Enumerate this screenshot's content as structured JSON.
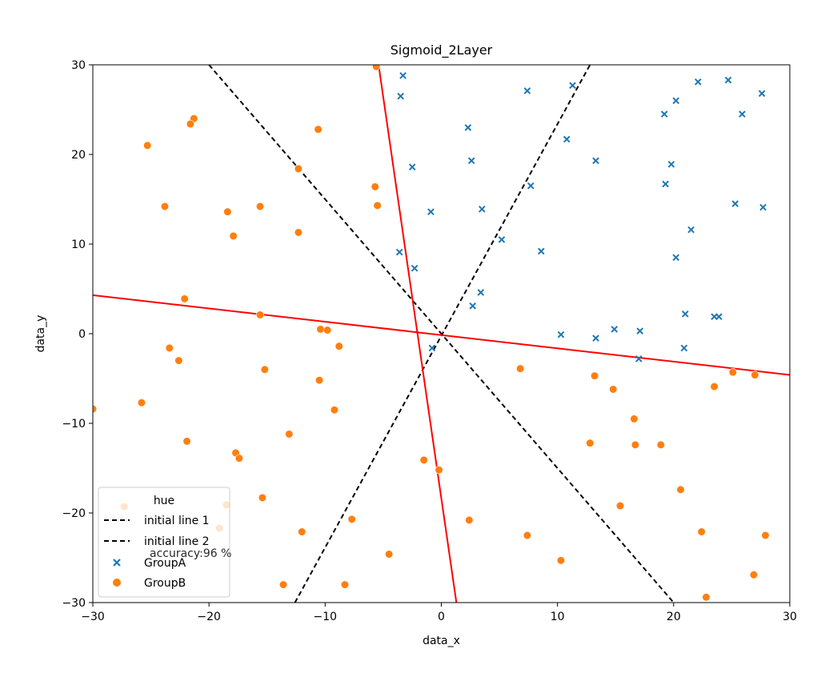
{
  "chart_data": {
    "type": "scatter",
    "title": "Sigmoid_2Layer",
    "xlabel": "data_x",
    "ylabel": "data_y",
    "xlim": [
      -30,
      30
    ],
    "ylim": [
      -30,
      30
    ],
    "x_ticks": [
      -30,
      -20,
      -10,
      0,
      10,
      20,
      30
    ],
    "y_ticks": [
      -30,
      -20,
      -10,
      0,
      10,
      20,
      30
    ],
    "x_tick_labels": [
      "−30",
      "−20",
      "−10",
      "0",
      "10",
      "20",
      "30"
    ],
    "y_tick_labels": [
      "−30",
      "−20",
      "−10",
      "0",
      "10",
      "20",
      "30"
    ],
    "grid": false,
    "legend": {
      "title": "hue",
      "placement": "lower-left",
      "entries": [
        {
          "label": "initial line 1",
          "kind": "dashed-line",
          "color": "#000000"
        },
        {
          "label": "initial line 2",
          "kind": "dashed-line",
          "color": "#000000"
        },
        {
          "label": "GroupA",
          "kind": "x-marker",
          "color": "#1f77b4"
        },
        {
          "label": "GroupB",
          "kind": "circle-marker",
          "color": "#ff7f0e"
        }
      ]
    },
    "annotation": "accuracy:96 %",
    "lines": [
      {
        "label": "initial line 1",
        "style": "dashed",
        "color": "#000000",
        "points": [
          [
            -20,
            30
          ],
          [
            20,
            -30
          ]
        ]
      },
      {
        "label": "initial line 2",
        "style": "dashed",
        "color": "#000000",
        "points": [
          [
            -12.6,
            -30
          ],
          [
            12.8,
            30
          ]
        ]
      },
      {
        "label": "",
        "style": "solid",
        "color": "#ff0000",
        "points": [
          [
            -30,
            4.3
          ],
          [
            30,
            -4.6
          ]
        ]
      },
      {
        "label": "",
        "style": "solid",
        "color": "#ff0000",
        "points": [
          [
            -5.4,
            30
          ],
          [
            1.3,
            -30
          ]
        ]
      }
    ],
    "series": [
      {
        "name": "GroupA",
        "marker": "x",
        "color": "#1f77b4",
        "points": [
          [
            -3.3,
            28.8
          ],
          [
            -3.5,
            26.5
          ],
          [
            7.4,
            27.1
          ],
          [
            11.3,
            27.7
          ],
          [
            22.1,
            28.1
          ],
          [
            24.7,
            28.3
          ],
          [
            27.6,
            26.8
          ],
          [
            20.2,
            26.0
          ],
          [
            19.2,
            24.5
          ],
          [
            25.9,
            24.5
          ],
          [
            2.3,
            23.0
          ],
          [
            10.8,
            21.7
          ],
          [
            -2.5,
            18.6
          ],
          [
            2.6,
            19.3
          ],
          [
            13.3,
            19.3
          ],
          [
            19.8,
            18.9
          ],
          [
            19.3,
            16.7
          ],
          [
            7.7,
            16.5
          ],
          [
            -0.9,
            13.6
          ],
          [
            3.5,
            13.9
          ],
          [
            25.3,
            14.5
          ],
          [
            27.7,
            14.1
          ],
          [
            21.5,
            11.6
          ],
          [
            5.2,
            10.5
          ],
          [
            8.6,
            9.2
          ],
          [
            -3.6,
            9.1
          ],
          [
            -2.3,
            7.3
          ],
          [
            20.2,
            8.5
          ],
          [
            3.4,
            4.6
          ],
          [
            2.7,
            3.1
          ],
          [
            21.0,
            2.2
          ],
          [
            23.5,
            1.9
          ],
          [
            23.9,
            1.9
          ],
          [
            14.9,
            0.5
          ],
          [
            10.3,
            -0.1
          ],
          [
            17.1,
            0.3
          ],
          [
            13.3,
            -0.5
          ],
          [
            -0.8,
            -1.6
          ],
          [
            20.9,
            -1.6
          ],
          [
            17.0,
            -2.8
          ]
        ]
      },
      {
        "name": "GroupB",
        "marker": "o",
        "color": "#ff7f0e",
        "points": [
          [
            -5.6,
            29.8
          ],
          [
            -21.3,
            24.0
          ],
          [
            -21.6,
            23.4
          ],
          [
            -10.6,
            22.8
          ],
          [
            -25.3,
            21.0
          ],
          [
            -12.3,
            18.4
          ],
          [
            -5.7,
            16.4
          ],
          [
            -23.8,
            14.2
          ],
          [
            -18.4,
            13.6
          ],
          [
            -15.6,
            14.2
          ],
          [
            -5.5,
            14.3
          ],
          [
            -17.9,
            10.9
          ],
          [
            -12.3,
            11.3
          ],
          [
            -22.1,
            3.9
          ],
          [
            -15.6,
            2.1
          ],
          [
            -10.4,
            0.5
          ],
          [
            -9.8,
            0.4
          ],
          [
            -23.4,
            -1.6
          ],
          [
            -8.8,
            -1.4
          ],
          [
            -22.6,
            -3.0
          ],
          [
            -15.2,
            -4.0
          ],
          [
            -10.5,
            -5.2
          ],
          [
            6.8,
            -3.9
          ],
          [
            13.2,
            -4.7
          ],
          [
            25.1,
            -4.3
          ],
          [
            27.0,
            -4.6
          ],
          [
            23.5,
            -5.9
          ],
          [
            14.8,
            -6.2
          ],
          [
            -25.8,
            -7.7
          ],
          [
            -9.2,
            -8.5
          ],
          [
            -30.0,
            -8.4
          ],
          [
            16.6,
            -9.5
          ],
          [
            -13.1,
            -11.2
          ],
          [
            -21.9,
            -12.0
          ],
          [
            12.8,
            -12.2
          ],
          [
            16.7,
            -12.4
          ],
          [
            18.9,
            -12.4
          ],
          [
            -17.7,
            -13.3
          ],
          [
            -17.4,
            -13.9
          ],
          [
            -1.5,
            -14.1
          ],
          [
            -0.2,
            -15.2
          ],
          [
            20.6,
            -17.4
          ],
          [
            -15.4,
            -18.3
          ],
          [
            15.4,
            -19.2
          ],
          [
            -18.5,
            -19.1
          ],
          [
            -27.3,
            -19.3
          ],
          [
            -7.7,
            -20.7
          ],
          [
            2.4,
            -20.8
          ],
          [
            -19.1,
            -21.7
          ],
          [
            -12.0,
            -22.1
          ],
          [
            22.4,
            -22.1
          ],
          [
            7.4,
            -22.5
          ],
          [
            27.9,
            -22.5
          ],
          [
            -4.5,
            -24.6
          ],
          [
            10.3,
            -25.3
          ],
          [
            26.9,
            -26.9
          ],
          [
            -13.6,
            -28.0
          ],
          [
            -8.3,
            -28.0
          ],
          [
            22.8,
            -29.4
          ]
        ]
      }
    ]
  }
}
